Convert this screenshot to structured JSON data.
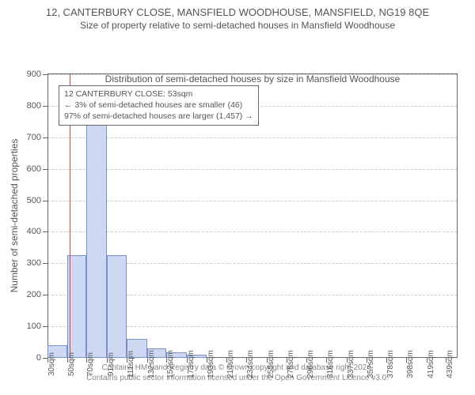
{
  "title": "12, CANTERBURY CLOSE, MANSFIELD WOODHOUSE, MANSFIELD, NG19 8QE",
  "subtitle": "Size of property relative to semi-detached houses in Mansfield Woodhouse",
  "chart": {
    "type": "histogram",
    "ylabel": "Number of semi-detached properties",
    "xlabel": "Distribution of semi-detached houses by size in Mansfield Woodhouse",
    "ylim": [
      0,
      900
    ],
    "ytick_step": 100,
    "xlim": [
      30,
      450
    ],
    "x_ticks": [
      30,
      50,
      70,
      91,
      111,
      132,
      152,
      173,
      193,
      214,
      234,
      255,
      275,
      296,
      316,
      337,
      357,
      378,
      398,
      419,
      439
    ],
    "bars": [
      {
        "x0": 30,
        "x1": 50,
        "value": 40
      },
      {
        "x0": 50,
        "x1": 70,
        "value": 325
      },
      {
        "x0": 70,
        "x1": 91,
        "value": 840
      },
      {
        "x0": 91,
        "x1": 111,
        "value": 325
      },
      {
        "x0": 111,
        "x1": 132,
        "value": 60
      },
      {
        "x0": 132,
        "x1": 152,
        "value": 30
      },
      {
        "x0": 152,
        "x1": 173,
        "value": 18
      },
      {
        "x0": 173,
        "x1": 193,
        "value": 10
      }
    ],
    "bar_fill": "#cdd9f2",
    "bar_border": "#7a8fc9",
    "grid_color": "#cccccc",
    "axis_color": "#666666",
    "background": "#ffffff",
    "marker": {
      "x": 53,
      "color": "#d14545"
    }
  },
  "annotation": {
    "line1": "12 CANTERBURY CLOSE: 53sqm",
    "line2": "← 3% of semi-detached houses are smaller (46)",
    "line3": "97% of semi-detached houses are larger (1,457) →"
  },
  "footer": {
    "line1": "Contains HM Land Registry data © Crown copyright and database right 2024.",
    "line2": "Contains public sector information licensed under the Open Government Licence v3.0."
  }
}
